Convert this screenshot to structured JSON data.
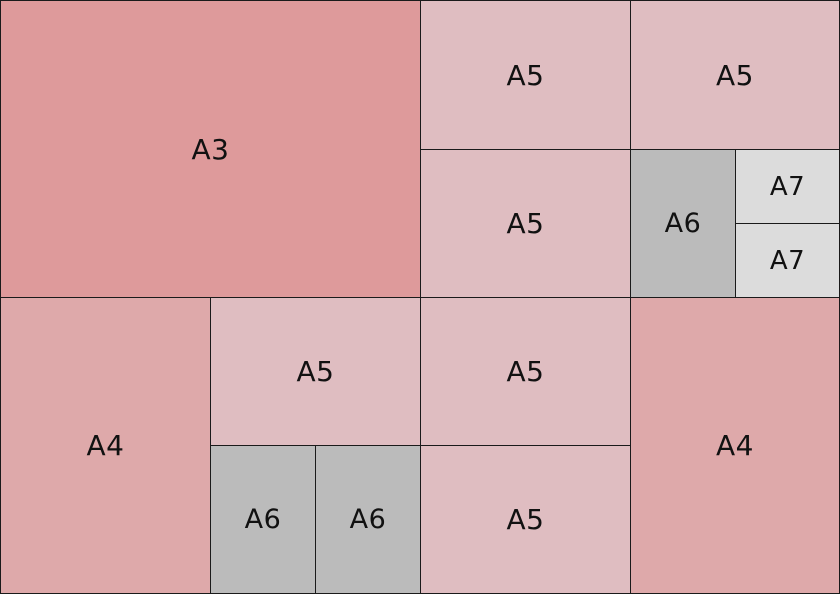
{
  "colors": {
    "A3": "#de9a9b",
    "A4": "#dea9aa",
    "A5": "#dfbdc1",
    "A6": "#bbbbbb",
    "A7": "#dcdcdc",
    "border": "#1a1a1a"
  },
  "sheets": [
    {
      "id": "a3-top-left",
      "label": "A3",
      "size": "A3"
    },
    {
      "id": "a5-top-1",
      "label": "A5",
      "size": "A5"
    },
    {
      "id": "a5-top-2",
      "label": "A5",
      "size": "A5"
    },
    {
      "id": "a5-mid-left",
      "label": "A5",
      "size": "A5"
    },
    {
      "id": "a6-mid",
      "label": "A6",
      "size": "A6"
    },
    {
      "id": "a7-top",
      "label": "A7",
      "size": "A7"
    },
    {
      "id": "a7-bottom",
      "label": "A7",
      "size": "A7"
    },
    {
      "id": "a4-bottom-left",
      "label": "A4",
      "size": "A4"
    },
    {
      "id": "a5-bottom-1",
      "label": "A5",
      "size": "A5"
    },
    {
      "id": "a5-bottom-2",
      "label": "A5",
      "size": "A5"
    },
    {
      "id": "a6-bottom-1",
      "label": "A6",
      "size": "A6"
    },
    {
      "id": "a6-bottom-2",
      "label": "A6",
      "size": "A6"
    },
    {
      "id": "a5-bottom-3",
      "label": "A5",
      "size": "A5"
    },
    {
      "id": "a4-bottom-right",
      "label": "A4",
      "size": "A4"
    }
  ]
}
